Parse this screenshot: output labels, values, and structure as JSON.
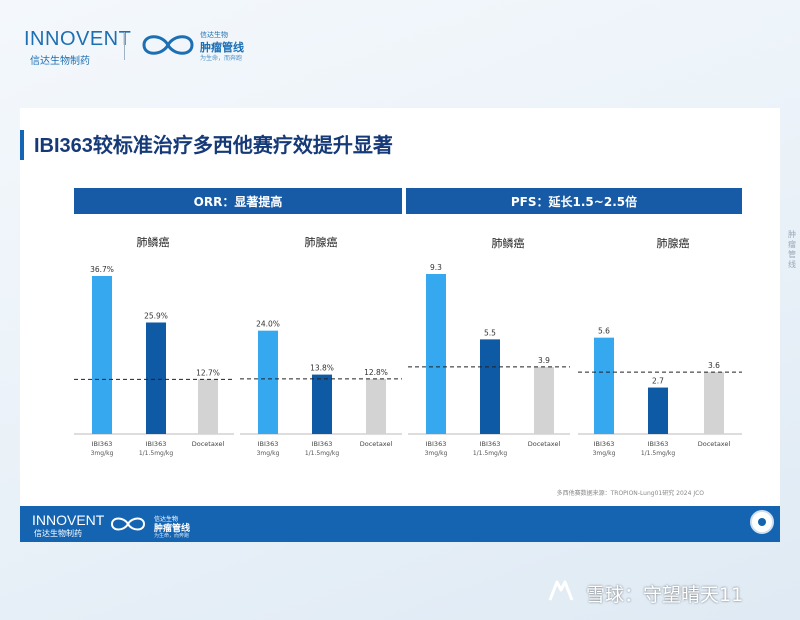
{
  "header": {
    "brand": "INNOVENT",
    "brand_sub": "信达生物制药",
    "partner_line1": "信达生物",
    "partner_line2": "肿瘤管线",
    "partner_tagline": "为生命，而奔跑",
    "edge_text": "肿瘤管线"
  },
  "title": "IBI363较标准治疗多西他赛疗效提升显著",
  "bands": {
    "orr": "ORR：显著提高",
    "pfs": "PFS：延长1.5~2.5倍"
  },
  "source": "多西他赛数据来源：TROPION-Lung01研究 2024 JCO",
  "footer": {
    "brand": "INNOVENT",
    "brand_sub": "信达生物制药",
    "partner_line1": "信达生物",
    "partner_line2": "肿瘤管线",
    "partner_tagline": "为生命，而奔跑"
  },
  "watermark": "雪球：守望晴天11",
  "colors": {
    "ibi3": "#36a8f0",
    "ibi1": "#0f5aa5",
    "doce": "#d3d3d3",
    "band": "#175aa5",
    "title": "#163a78"
  },
  "chart_data": [
    {
      "type": "bar",
      "metric": "ORR",
      "title": "肺鳞癌",
      "categories": [
        "IBI363 3mg/kg",
        "IBI363 1/1.5mg/kg",
        "Docetaxel"
      ],
      "values": [
        36.7,
        25.9,
        12.7
      ],
      "labels": [
        "36.7%",
        "25.9%",
        "12.7%"
      ],
      "ylim": [
        0,
        40
      ],
      "reference_line": 12.7
    },
    {
      "type": "bar",
      "metric": "ORR",
      "title": "肺腺癌",
      "categories": [
        "IBI363 3mg/kg",
        "IBI363 1/1.5mg/kg",
        "Docetaxel"
      ],
      "values": [
        24.0,
        13.8,
        12.8
      ],
      "labels": [
        "24.0%",
        "13.8%",
        "12.8%"
      ],
      "ylim": [
        0,
        40
      ],
      "reference_line": 12.8
    },
    {
      "type": "bar",
      "metric": "PFS",
      "title": "肺鳞癌",
      "categories": [
        "IBI363 3mg/kg",
        "IBI363 1/1.5mg/kg",
        "Docetaxel"
      ],
      "values": [
        9.3,
        5.5,
        3.9
      ],
      "labels": [
        "9.3",
        "5.5",
        "3.9"
      ],
      "ylim": [
        0,
        10
      ],
      "reference_line": 3.9
    },
    {
      "type": "bar",
      "metric": "PFS",
      "title": "肺腺癌",
      "categories": [
        "IBI363 3mg/kg",
        "IBI363 1/1.5mg/kg",
        "Docetaxel"
      ],
      "values": [
        5.6,
        2.7,
        3.6
      ],
      "labels": [
        "5.6",
        "2.7",
        "3.6"
      ],
      "ylim": [
        0,
        10
      ],
      "reference_line": 3.6
    }
  ]
}
